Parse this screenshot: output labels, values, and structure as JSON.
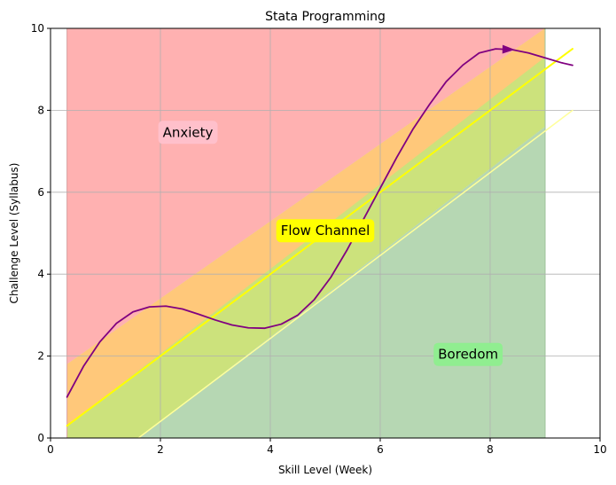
{
  "chart_data": {
    "type": "area",
    "title": "Stata Programming",
    "xlabel": "Skill Level (Week)",
    "ylabel": "Challenge Level (Syllabus)",
    "xlim": [
      0,
      10
    ],
    "ylim": [
      0,
      10
    ],
    "xticks": [
      0,
      2,
      4,
      6,
      8,
      10
    ],
    "yticks": [
      0,
      2,
      4,
      6,
      8,
      10
    ],
    "xtick_labels": [
      "0",
      "2",
      "4",
      "6",
      "8",
      "10"
    ],
    "ytick_labels": [
      "0",
      "2",
      "4",
      "6",
      "8",
      "10"
    ],
    "grid": true,
    "regions": [
      {
        "name": "Anxiety",
        "color": "#ffb1b1",
        "x_range": [
          0.3,
          9.0
        ],
        "lower": [
          [
            0.3,
            1.8
          ],
          [
            9.0,
            10.0
          ]
        ],
        "upper": [
          [
            0.3,
            10.0
          ],
          [
            9.0,
            10.0
          ]
        ]
      },
      {
        "name": "Flow Channel",
        "color": "#ffc87a",
        "x_range": [
          0.3,
          9.0
        ],
        "lower": [
          [
            0.3,
            0.0
          ],
          [
            9.0,
            9.0
          ]
        ],
        "upper": [
          [
            0.3,
            1.8
          ],
          [
            9.0,
            10.0
          ]
        ]
      },
      {
        "name": "Boredom",
        "color": "#b6d7b3",
        "x_range": [
          0.3,
          9.0
        ],
        "lower": [
          [
            0.3,
            0.0
          ],
          [
            9.0,
            0.0
          ]
        ],
        "upper": [
          [
            0.3,
            0.0
          ],
          [
            1.6,
            0.0
          ],
          [
            9.0,
            7.6
          ]
        ]
      }
    ],
    "overlap_color": "#cce27c",
    "series": [
      {
        "color": "#ffff00",
        "x": [
          0.3,
          9.5
        ],
        "y": [
          0.3,
          9.5
        ]
      },
      {
        "color": "#ffff99",
        "x": [
          1.6,
          9.5
        ],
        "y": [
          0.0,
          8.0
        ]
      },
      {
        "color": "#800080",
        "x": [
          0.3,
          0.6,
          0.9,
          1.2,
          1.5,
          1.8,
          2.1,
          2.4,
          2.7,
          3.0,
          3.3,
          3.6,
          3.9,
          4.2,
          4.5,
          4.8,
          5.1,
          5.4,
          5.7,
          6.0,
          6.3,
          6.6,
          6.9,
          7.2,
          7.5,
          7.8,
          8.1,
          8.4,
          8.7,
          9.0,
          9.3,
          9.5
        ],
        "y": [
          1.0,
          1.75,
          2.35,
          2.8,
          3.08,
          3.2,
          3.22,
          3.15,
          3.02,
          2.88,
          2.76,
          2.69,
          2.68,
          2.78,
          3.0,
          3.38,
          3.92,
          4.6,
          5.35,
          6.1,
          6.85,
          7.55,
          8.15,
          8.7,
          9.1,
          9.4,
          9.5,
          9.48,
          9.4,
          9.28,
          9.16,
          9.1
        ]
      }
    ],
    "annotations": [
      {
        "text": "Anxiety",
        "x": 2.5,
        "y": 7.45,
        "bg": "#ffc0cb"
      },
      {
        "text": "Flow Channel",
        "x": 5.0,
        "y": 5.05,
        "bg": "#ffff00"
      },
      {
        "text": "Boredom",
        "x": 7.6,
        "y": 2.03,
        "bg": "#90ee90"
      }
    ]
  }
}
